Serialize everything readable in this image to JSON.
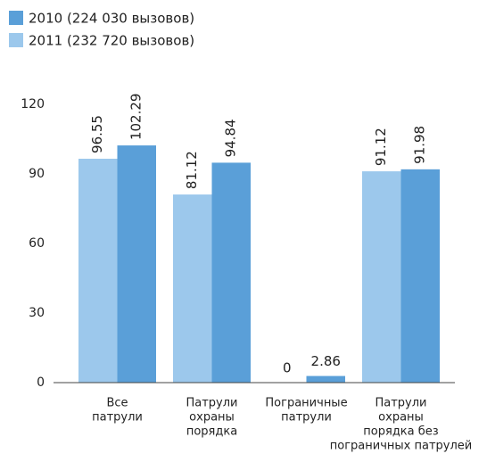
{
  "chart_data": {
    "type": "bar",
    "categories": [
      [
        "Все",
        "патрули"
      ],
      [
        "Патрули",
        "охраны",
        "порядка"
      ],
      [
        "Пограничные",
        "патрули"
      ],
      [
        "Патрули",
        "охраны",
        "порядка без",
        "пограничных патрулей"
      ]
    ],
    "series": [
      {
        "name": "2010 (224 030 вызовов)",
        "color": "#5a9fd8",
        "values": [
          102.29,
          94.84,
          2.86,
          91.98
        ]
      },
      {
        "name": "2011 (232 720 вызовов)",
        "color": "#9cc8ec",
        "values": [
          96.55,
          81.12,
          0,
          91.12
        ]
      }
    ],
    "ylim": [
      0,
      120
    ],
    "yticks": [
      0,
      30,
      60,
      90,
      120
    ],
    "legend": "top-left"
  }
}
